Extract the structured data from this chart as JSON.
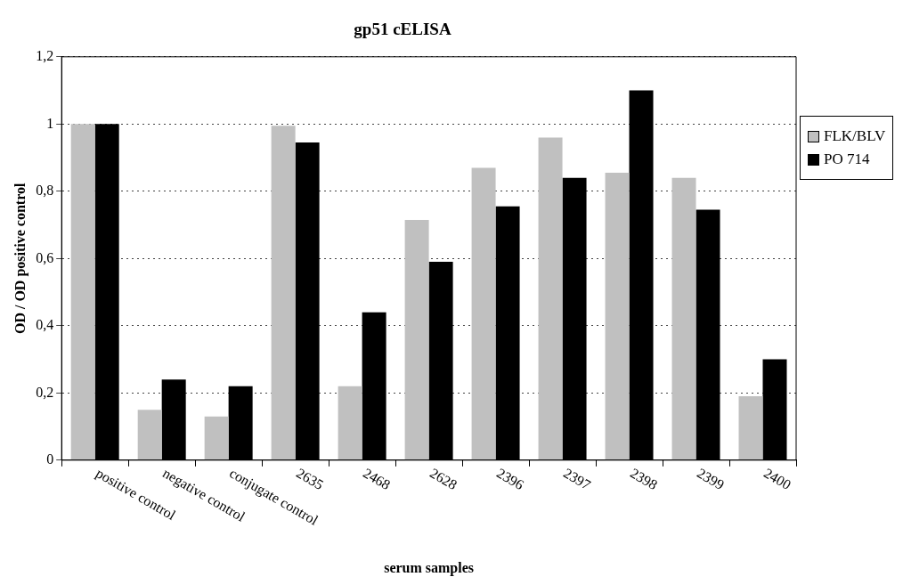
{
  "chart_data": {
    "type": "bar",
    "title": "gp51 cELISA",
    "xlabel": "serum samples",
    "ylabel": "OD / OD positive control",
    "categories": [
      "positive control",
      "negative control",
      "conjugate control",
      "2635",
      "2468",
      "2628",
      "2396",
      "2397",
      "2398",
      "2399",
      "2400"
    ],
    "series": [
      {
        "name": "FLK/BLV",
        "color": "#c0c0c0",
        "values": [
          1,
          0.15,
          0.13,
          0.995,
          0.22,
          0.715,
          0.87,
          0.96,
          0.855,
          0.84,
          0.19
        ]
      },
      {
        "name": "PO 714",
        "color": "#000000",
        "values": [
          1,
          0.24,
          0.22,
          0.945,
          0.44,
          0.59,
          0.755,
          0.84,
          1.1,
          0.745,
          0.3
        ]
      }
    ],
    "ylim": [
      0,
      1.2
    ],
    "yticks": [
      0,
      {
        "value": 0.2,
        "label": "0,2"
      },
      {
        "value": 0.4,
        "label": "0,4"
      },
      {
        "value": 0.6,
        "label": "0,6"
      },
      {
        "value": 0.8,
        "label": "0,8"
      },
      1,
      {
        "value": 1.2,
        "label": "1,2"
      }
    ],
    "grid": "y",
    "line_style": "dotted",
    "legend": "right"
  }
}
